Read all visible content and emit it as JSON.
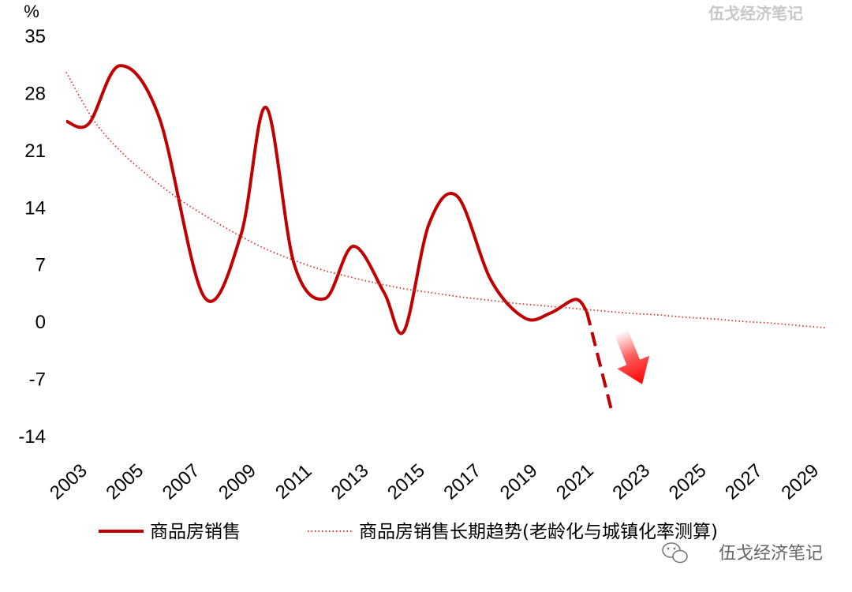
{
  "watermark": {
    "top": "伍戈经济笔记",
    "bottom": "伍戈经济笔记",
    "icon": "wechat-icon"
  },
  "chart_data": {
    "type": "line",
    "y_unit": "%",
    "ylim": [
      -14,
      35
    ],
    "yticks": [
      "35",
      "28",
      "21",
      "14",
      "7",
      "0",
      "-7",
      "-14"
    ],
    "xlim": [
      2003,
      2030
    ],
    "xticks": [
      "2003",
      "2005",
      "2007",
      "2009",
      "2011",
      "2013",
      "2015",
      "2017",
      "2019",
      "2021",
      "2023",
      "2025",
      "2027",
      "2029"
    ],
    "grid": false,
    "legend_position": "bottom",
    "series": [
      {
        "name": "商品房销售",
        "style": "solid",
        "color": "#c00000",
        "x": [
          2003,
          2003.8,
          2004.9,
          2006.3,
          2007.9,
          2009.2,
          2010.1,
          2011.1,
          2012.2,
          2013.2,
          2014.3,
          2015.0,
          2015.9,
          2016.9,
          2018.1,
          2019.3,
          2020.2,
          2021.1,
          2021.5
        ],
        "y": [
          24.5,
          24.2,
          31.3,
          25.0,
          3.0,
          10.5,
          26.2,
          7.0,
          2.8,
          9.2,
          3.5,
          -1.2,
          12.0,
          15.3,
          5.0,
          0.4,
          1.0,
          2.7,
          1.2
        ]
      },
      {
        "name": "projection",
        "style": "dashed",
        "color": "#c00000",
        "x": [
          2021.5,
          2022.4
        ],
        "y": [
          1.2,
          -11.2
        ]
      },
      {
        "name": "商品房销售长期趋势(老龄化与城镇化率测算)",
        "style": "dotted",
        "color": "#e0302a",
        "x": [
          2003,
          2004,
          2005,
          2006,
          2007,
          2008,
          2009,
          2010,
          2011,
          2012,
          2013,
          2014,
          2015,
          2016,
          2017,
          2018,
          2019,
          2020,
          2021,
          2022,
          2023,
          2024,
          2025,
          2026,
          2027,
          2028,
          2029,
          2030
        ],
        "y": [
          30.5,
          24.5,
          20.6,
          17.6,
          15.0,
          12.8,
          10.8,
          9.0,
          7.6,
          6.4,
          5.5,
          4.7,
          4.0,
          3.5,
          3.0,
          2.6,
          2.2,
          1.9,
          1.6,
          1.3,
          1.0,
          0.8,
          0.5,
          0.3,
          0.0,
          -0.2,
          -0.5,
          -0.8
        ]
      }
    ],
    "annotations": [
      {
        "type": "arrow-down",
        "color": "#ff0000",
        "meaning": "decline"
      }
    ]
  },
  "legend": {
    "items": [
      {
        "label": "商品房销售",
        "style": "solid"
      },
      {
        "label": "商品房销售长期趋势(老龄化与城镇化率测算)",
        "style": "dotted"
      }
    ]
  }
}
